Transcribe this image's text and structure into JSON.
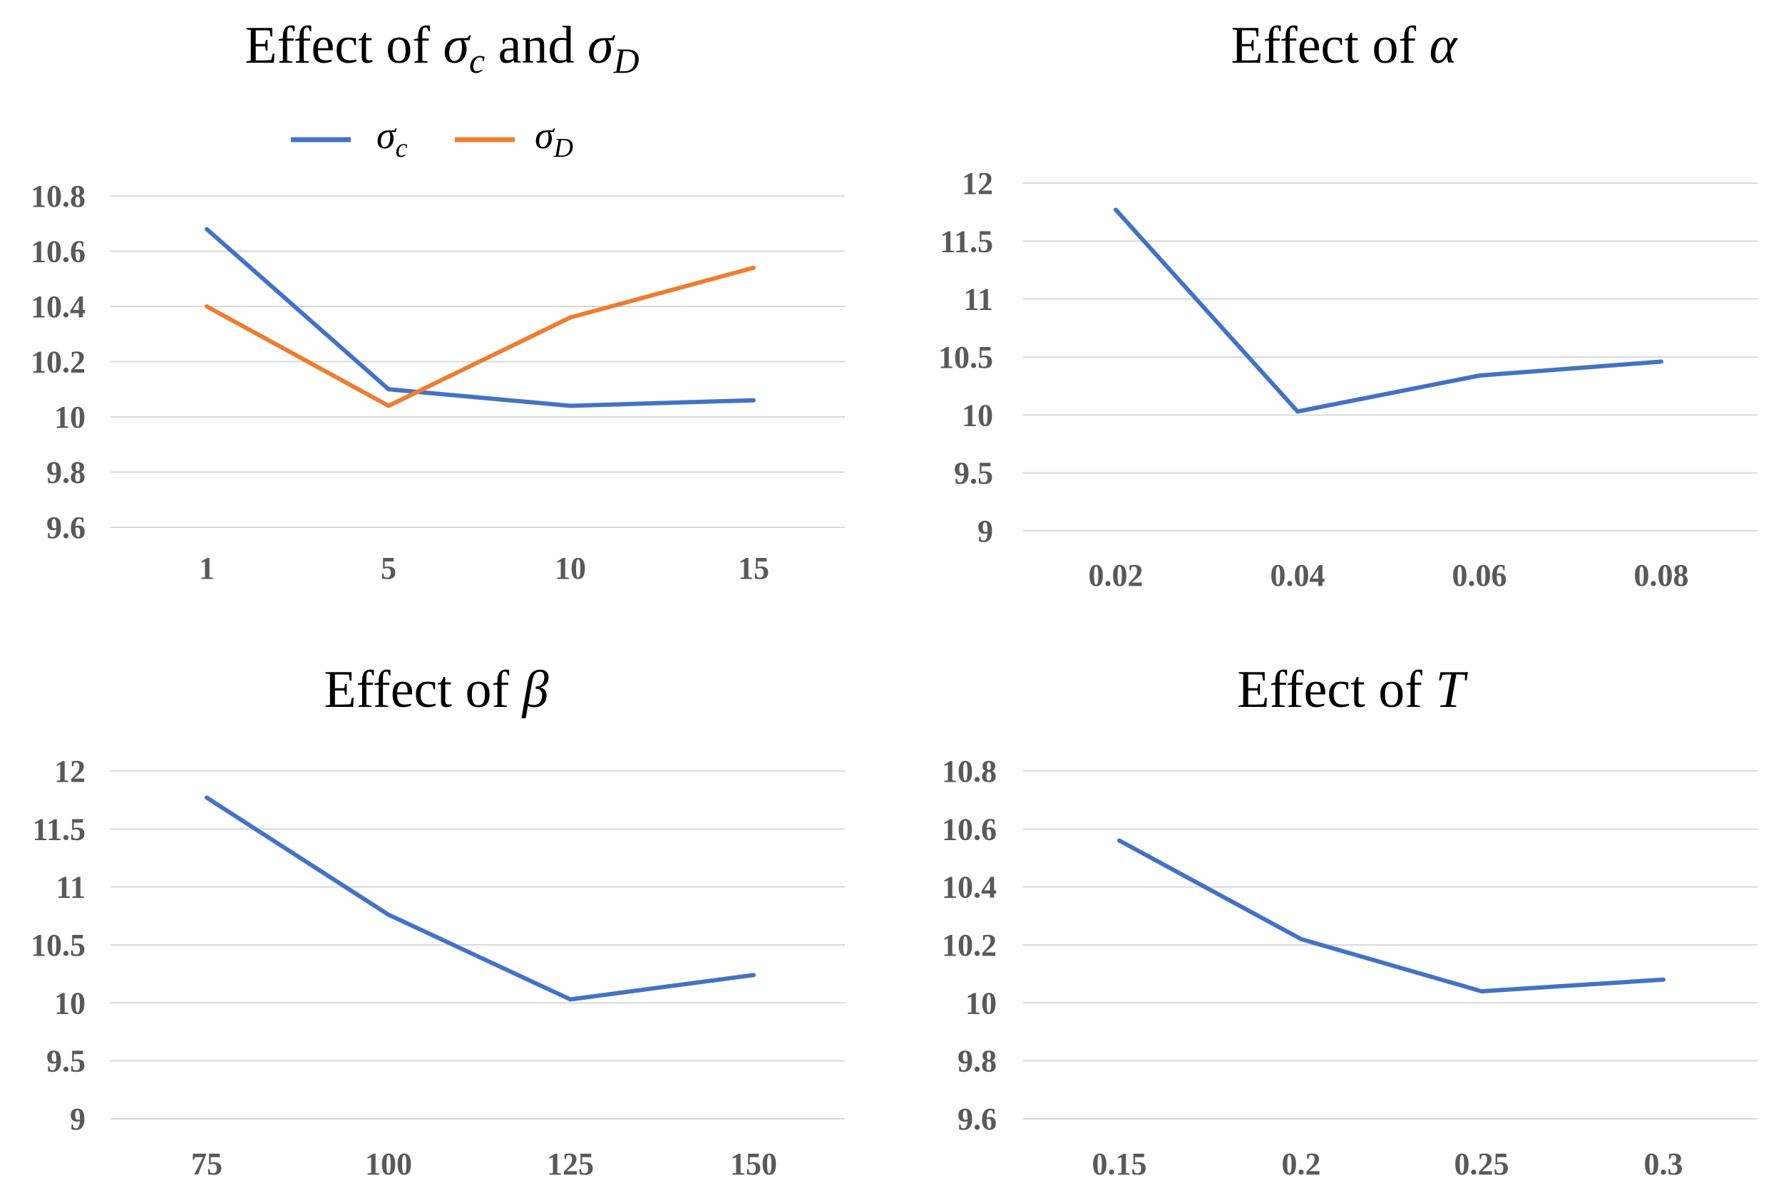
{
  "chart_data": [
    {
      "id": "p1",
      "type": "line",
      "title_prefix": "Effect of ",
      "title_sym1": "σ",
      "title_sub1": "c",
      "title_mid": " and ",
      "title_sym2": "σ",
      "title_sub2": "D",
      "categories": [
        "1",
        "5",
        "10",
        "15"
      ],
      "ylim": [
        9.6,
        10.8
      ],
      "yticks": [
        9.6,
        9.8,
        10,
        10.2,
        10.4,
        10.6,
        10.8
      ],
      "ytick_labels": [
        "9.6",
        "9.8",
        "10",
        "10.2",
        "10.4",
        "10.6",
        "10.8"
      ],
      "legend": "top",
      "series": [
        {
          "name": "σc",
          "sym": "σ",
          "sub": "c",
          "color": "#4472c4",
          "values": [
            10.68,
            10.1,
            10.04,
            10.06
          ]
        },
        {
          "name": "σD",
          "sym": "σ",
          "sub": "D",
          "color": "#ed7d31",
          "values": [
            10.4,
            10.04,
            10.36,
            10.54
          ]
        }
      ]
    },
    {
      "id": "p2",
      "type": "line",
      "title_prefix": "Effect of ",
      "title_sym1": "α",
      "categories": [
        "0.02",
        "0.04",
        "0.06",
        "0.08"
      ],
      "ylim": [
        9,
        12
      ],
      "yticks": [
        9,
        9.5,
        10,
        10.5,
        11,
        11.5,
        12
      ],
      "ytick_labels": [
        "9",
        "9.5",
        "10",
        "10.5",
        "11",
        "11.5",
        "12"
      ],
      "series": [
        {
          "name": "α",
          "color": "#4472c4",
          "values": [
            11.77,
            10.03,
            10.34,
            10.46
          ]
        }
      ]
    },
    {
      "id": "p3",
      "type": "line",
      "title_prefix": "Effect of ",
      "title_sym1": "β",
      "categories": [
        "75",
        "100",
        "125",
        "150"
      ],
      "ylim": [
        9,
        12
      ],
      "yticks": [
        9,
        9.5,
        10,
        10.5,
        11,
        11.5,
        12
      ],
      "ytick_labels": [
        "9",
        "9.5",
        "10",
        "10.5",
        "11",
        "11.5",
        "12"
      ],
      "series": [
        {
          "name": "β",
          "color": "#4472c4",
          "values": [
            11.77,
            10.76,
            10.03,
            10.24
          ]
        }
      ]
    },
    {
      "id": "p4",
      "type": "line",
      "title_prefix": "Effect of ",
      "title_sym1": "T",
      "categories": [
        "0.15",
        "0.2",
        "0.25",
        "0.3"
      ],
      "ylim": [
        9.6,
        10.8
      ],
      "yticks": [
        9.6,
        9.8,
        10,
        10.2,
        10.4,
        10.6,
        10.8
      ],
      "ytick_labels": [
        "9.6",
        "9.8",
        "10",
        "10.2",
        "10.4",
        "10.6",
        "10.8"
      ],
      "series": [
        {
          "name": "T",
          "color": "#4472c4",
          "values": [
            10.56,
            10.22,
            10.04,
            10.08
          ]
        }
      ]
    }
  ]
}
